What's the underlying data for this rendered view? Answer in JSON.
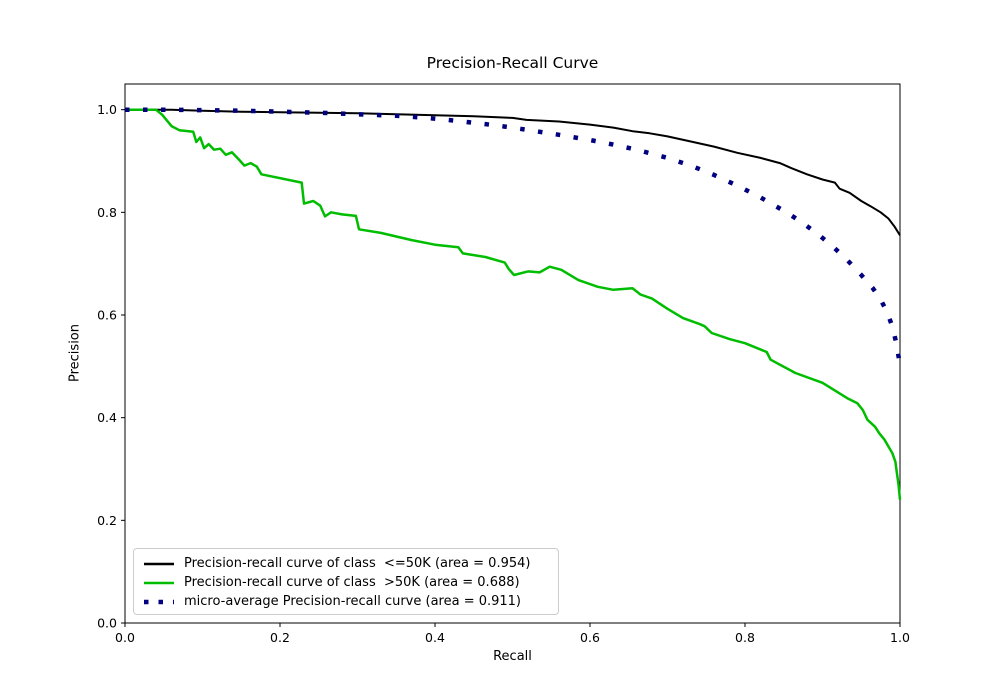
{
  "figure": {
    "background": "#ffffff"
  },
  "chart_data": {
    "type": "line",
    "title": "Precision-Recall Curve",
    "xlabel": "Recall",
    "ylabel": "Precision",
    "xlim": [
      0.0,
      1.0
    ],
    "ylim": [
      0.0,
      1.05
    ],
    "grid": false,
    "legend_position": "lower left",
    "x_tick_values": [
      0.0,
      0.2,
      0.4,
      0.6,
      0.8,
      1.0
    ],
    "x_tick_labels": [
      "0.0",
      "0.2",
      "0.4",
      "0.6",
      "0.8",
      "1.0"
    ],
    "y_tick_values": [
      0.0,
      0.2,
      0.4,
      0.6,
      0.8,
      1.0
    ],
    "y_tick_labels": [
      "0.0",
      "0.2",
      "0.4",
      "0.6",
      "0.8",
      "1.0"
    ],
    "series": [
      {
        "id": "class-le-50k",
        "name": "Precision-recall curve of class  <=50K (area = 0.954)",
        "area": 0.954,
        "color": "#000000",
        "style": "solid",
        "width": 2,
        "points": [
          [
            0.0,
            1.0
          ],
          [
            0.06,
            1.0
          ],
          [
            0.1,
            0.998
          ],
          [
            0.15,
            0.996
          ],
          [
            0.2,
            0.995
          ],
          [
            0.25,
            0.994
          ],
          [
            0.3,
            0.993
          ],
          [
            0.35,
            0.991
          ],
          [
            0.4,
            0.989
          ],
          [
            0.45,
            0.987
          ],
          [
            0.5,
            0.984
          ],
          [
            0.518,
            0.98
          ],
          [
            0.56,
            0.977
          ],
          [
            0.6,
            0.971
          ],
          [
            0.63,
            0.965
          ],
          [
            0.655,
            0.958
          ],
          [
            0.677,
            0.954
          ],
          [
            0.7,
            0.948
          ],
          [
            0.73,
            0.938
          ],
          [
            0.76,
            0.928
          ],
          [
            0.79,
            0.916
          ],
          [
            0.82,
            0.906
          ],
          [
            0.845,
            0.896
          ],
          [
            0.86,
            0.886
          ],
          [
            0.88,
            0.874
          ],
          [
            0.9,
            0.864
          ],
          [
            0.916,
            0.858
          ],
          [
            0.922,
            0.846
          ],
          [
            0.935,
            0.838
          ],
          [
            0.95,
            0.822
          ],
          [
            0.962,
            0.812
          ],
          [
            0.975,
            0.8
          ],
          [
            0.985,
            0.788
          ],
          [
            0.993,
            0.772
          ],
          [
            1.0,
            0.755
          ]
        ]
      },
      {
        "id": "class-gt-50k",
        "name": "Precision-recall curve of class  >50K (area = 0.688)",
        "area": 0.688,
        "color": "#00bd00",
        "style": "solid",
        "width": 2.5,
        "points": [
          [
            0.0,
            1.0
          ],
          [
            0.04,
            1.0
          ],
          [
            0.048,
            0.99
          ],
          [
            0.06,
            0.968
          ],
          [
            0.07,
            0.96
          ],
          [
            0.088,
            0.957
          ],
          [
            0.092,
            0.937
          ],
          [
            0.097,
            0.946
          ],
          [
            0.102,
            0.925
          ],
          [
            0.108,
            0.933
          ],
          [
            0.115,
            0.922
          ],
          [
            0.123,
            0.924
          ],
          [
            0.13,
            0.912
          ],
          [
            0.138,
            0.917
          ],
          [
            0.147,
            0.903
          ],
          [
            0.154,
            0.891
          ],
          [
            0.162,
            0.896
          ],
          [
            0.17,
            0.889
          ],
          [
            0.176,
            0.874
          ],
          [
            0.228,
            0.858
          ],
          [
            0.231,
            0.817
          ],
          [
            0.243,
            0.822
          ],
          [
            0.252,
            0.813
          ],
          [
            0.258,
            0.792
          ],
          [
            0.266,
            0.8
          ],
          [
            0.28,
            0.796
          ],
          [
            0.298,
            0.793
          ],
          [
            0.302,
            0.767
          ],
          [
            0.33,
            0.76
          ],
          [
            0.37,
            0.746
          ],
          [
            0.4,
            0.737
          ],
          [
            0.43,
            0.732
          ],
          [
            0.436,
            0.72
          ],
          [
            0.465,
            0.713
          ],
          [
            0.49,
            0.702
          ],
          [
            0.495,
            0.69
          ],
          [
            0.502,
            0.678
          ],
          [
            0.52,
            0.685
          ],
          [
            0.535,
            0.683
          ],
          [
            0.548,
            0.694
          ],
          [
            0.563,
            0.688
          ],
          [
            0.585,
            0.668
          ],
          [
            0.61,
            0.655
          ],
          [
            0.63,
            0.649
          ],
          [
            0.655,
            0.652
          ],
          [
            0.665,
            0.64
          ],
          [
            0.68,
            0.632
          ],
          [
            0.7,
            0.612
          ],
          [
            0.72,
            0.594
          ],
          [
            0.742,
            0.582
          ],
          [
            0.748,
            0.578
          ],
          [
            0.757,
            0.565
          ],
          [
            0.78,
            0.553
          ],
          [
            0.8,
            0.545
          ],
          [
            0.828,
            0.528
          ],
          [
            0.833,
            0.513
          ],
          [
            0.865,
            0.487
          ],
          [
            0.9,
            0.468
          ],
          [
            0.932,
            0.438
          ],
          [
            0.945,
            0.428
          ],
          [
            0.952,
            0.415
          ],
          [
            0.958,
            0.396
          ],
          [
            0.968,
            0.382
          ],
          [
            0.973,
            0.37
          ],
          [
            0.98,
            0.357
          ],
          [
            0.99,
            0.331
          ],
          [
            0.994,
            0.314
          ],
          [
            0.996,
            0.292
          ],
          [
            0.998,
            0.27
          ],
          [
            1.0,
            0.24
          ]
        ]
      },
      {
        "id": "micro-average",
        "name": "micro-average Precision-recall curve (area = 0.911)",
        "area": 0.911,
        "color": "#000080",
        "style": "dotted",
        "width": 4.5,
        "dash": "4.5 13.5",
        "points": [
          [
            0.0,
            1.0
          ],
          [
            0.06,
            1.0
          ],
          [
            0.1,
            0.999
          ],
          [
            0.15,
            0.998
          ],
          [
            0.2,
            0.996
          ],
          [
            0.25,
            0.994
          ],
          [
            0.3,
            0.991
          ],
          [
            0.35,
            0.988
          ],
          [
            0.39,
            0.984
          ],
          [
            0.43,
            0.978
          ],
          [
            0.47,
            0.971
          ],
          [
            0.5,
            0.965
          ],
          [
            0.53,
            0.958
          ],
          [
            0.56,
            0.951
          ],
          [
            0.6,
            0.941
          ],
          [
            0.63,
            0.932
          ],
          [
            0.66,
            0.922
          ],
          [
            0.7,
            0.906
          ],
          [
            0.73,
            0.891
          ],
          [
            0.76,
            0.873
          ],
          [
            0.79,
            0.852
          ],
          [
            0.82,
            0.829
          ],
          [
            0.85,
            0.803
          ],
          [
            0.87,
            0.784
          ],
          [
            0.89,
            0.762
          ],
          [
            0.91,
            0.738
          ],
          [
            0.93,
            0.71
          ],
          [
            0.95,
            0.678
          ],
          [
            0.965,
            0.652
          ],
          [
            0.975,
            0.63
          ],
          [
            0.983,
            0.607
          ],
          [
            0.99,
            0.578
          ],
          [
            0.995,
            0.547
          ],
          [
            1.0,
            0.503
          ]
        ]
      }
    ]
  }
}
